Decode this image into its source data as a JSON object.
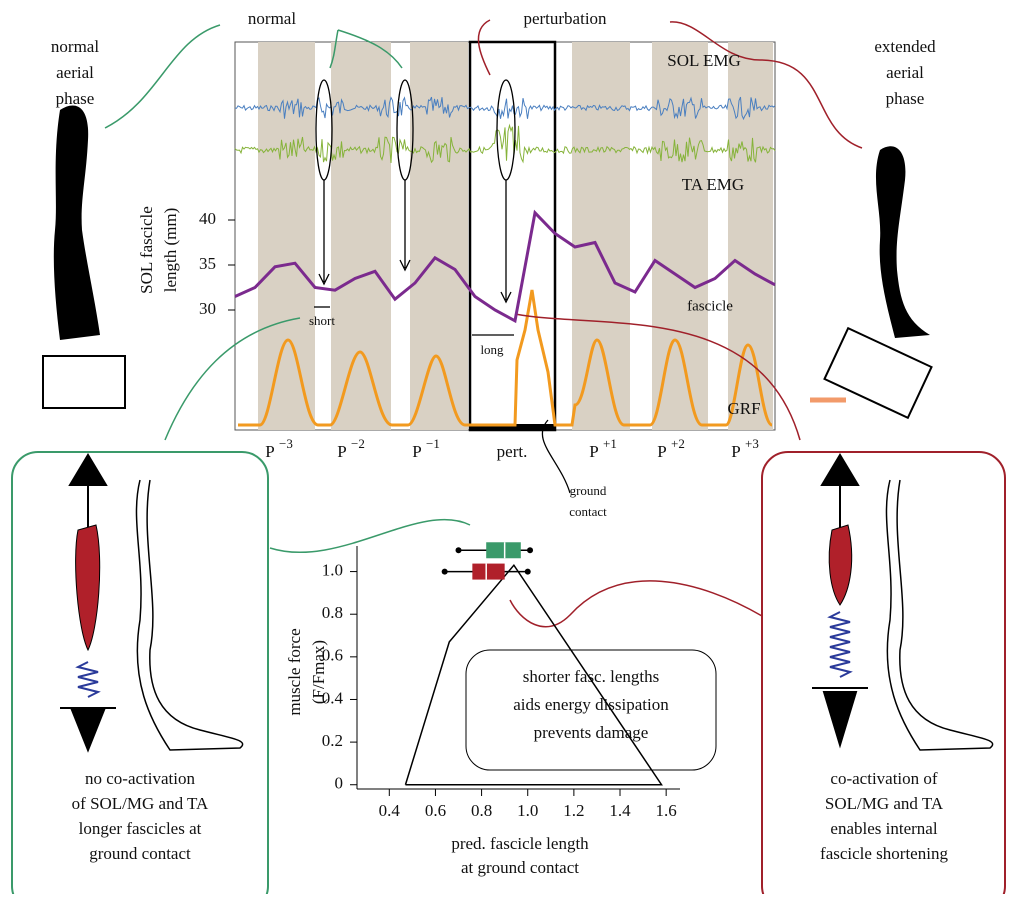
{
  "labels": {
    "normal_aerial": [
      "normal",
      "aerial",
      "phase"
    ],
    "extended_aerial": [
      "extended",
      "aerial",
      "phase"
    ],
    "normal": "normal",
    "perturbation": "perturbation",
    "sol_emg": "SOL EMG",
    "ta_emg": "TA EMG",
    "grf": "GRF",
    "short": "short",
    "long": "long",
    "ground_contact": [
      "ground",
      "contact"
    ],
    "left_caption": [
      "no co-activation",
      "of SOL/MG and TA",
      "longer fascicles at",
      "ground contact"
    ],
    "right_caption": [
      "co-activation of",
      "SOL/MG and TA",
      "enables internal",
      "fascicle shortening"
    ],
    "callout": [
      "shorter fasc. lengths",
      "aids energy dissipation",
      "prevents damage"
    ]
  },
  "chart_data": [
    {
      "type": "line",
      "ylabel": [
        "SOL fascicle",
        "length (mm)"
      ],
      "ylim": [
        27,
        42
      ],
      "yticks": [
        30,
        35,
        40
      ],
      "phases": [
        {
          "base": "P",
          "sup": "−3"
        },
        {
          "base": "P",
          "sup": "−2"
        },
        {
          "base": "P",
          "sup": "−1"
        },
        {
          "base": "pert."
        },
        {
          "base": "P",
          "sup": "+1"
        },
        {
          "base": "P",
          "sup": "+2"
        },
        {
          "base": "P",
          "sup": "+3"
        }
      ],
      "series": [
        {
          "name": "fascicle",
          "color": "#7b2a8e",
          "values": [
            31.5,
            32.5,
            34.8,
            35.2,
            32.5,
            32.2,
            33.5,
            34.3,
            31.2,
            33,
            35.8,
            34.5,
            31.5,
            30,
            28.8,
            40.8,
            38.5,
            37,
            37.5,
            33,
            32,
            35.5,
            34,
            32.5,
            33.5,
            35.5,
            34,
            32.8
          ]
        }
      ]
    },
    {
      "type": "box",
      "xlabel": [
        "pred. fascicle length",
        "at ground contact"
      ],
      "ylabel": [
        "muscle force",
        "(F/Fmax)"
      ],
      "xlim": [
        0.26,
        1.66
      ],
      "xticks": [
        0.4,
        0.6,
        0.8,
        {
          "value": 1,
          "label": "1.0"
        },
        1.2,
        1.4,
        1.6
      ],
      "ylim": [
        -0.02,
        1.12
      ],
      "yticks": [
        0,
        0.2,
        0.4,
        0.6,
        0.8,
        {
          "value": 1,
          "label": "1.0"
        }
      ],
      "outline": {
        "x": [
          0.47,
          0.66,
          0.94,
          1.58,
          0.47
        ],
        "y": [
          0,
          0.67,
          1.03,
          0,
          0
        ]
      },
      "boxes": [
        {
          "color": "#3a9a6a",
          "y": 1.1,
          "min": 0.7,
          "q1": 0.82,
          "median": 0.9,
          "q3": 0.97,
          "max": 1.01
        },
        {
          "color": "#b0202a",
          "y": 1.0,
          "min": 0.64,
          "q1": 0.76,
          "median": 0.82,
          "q3": 0.9,
          "max": 1.0
        }
      ]
    }
  ]
}
